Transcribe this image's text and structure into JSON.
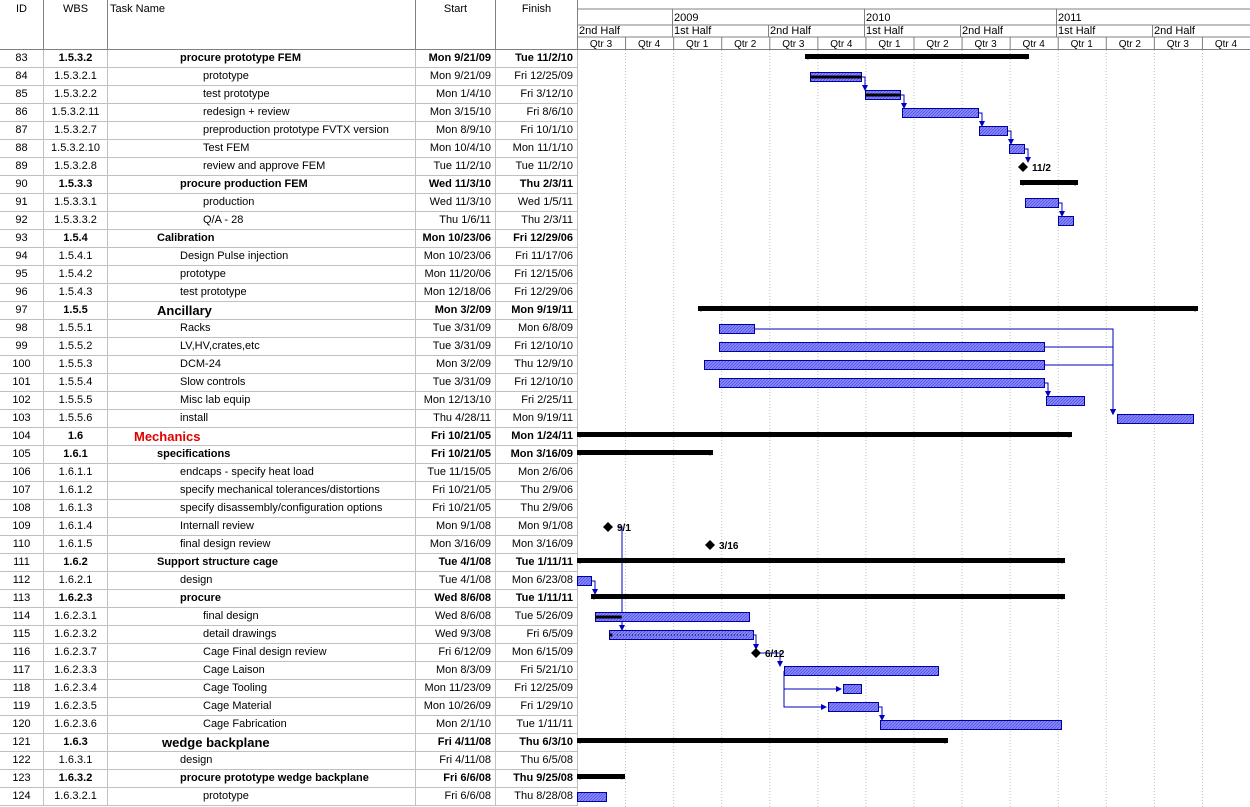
{
  "columns": {
    "id": "ID",
    "wbs": "WBS",
    "name": "Task Name",
    "start": "Start",
    "finish": "Finish"
  },
  "timescale": {
    "years": [
      {
        "label": "",
        "x0": 0,
        "x1": 95
      },
      {
        "label": "2009",
        "x0": 95,
        "x1": 287
      },
      {
        "label": "2010",
        "x0": 287,
        "x1": 479
      },
      {
        "label": "2011",
        "x0": 479,
        "x1": 673
      }
    ],
    "halves": [
      {
        "label": "2nd Half",
        "x0": 0,
        "x1": 95
      },
      {
        "label": "1st Half",
        "x0": 95,
        "x1": 191
      },
      {
        "label": "2nd Half",
        "x0": 191,
        "x1": 287
      },
      {
        "label": "1st Half",
        "x0": 287,
        "x1": 383
      },
      {
        "label": "2nd Half",
        "x0": 383,
        "x1": 479
      },
      {
        "label": "1st Half",
        "x0": 479,
        "x1": 575
      },
      {
        "label": "2nd Half",
        "x0": 575,
        "x1": 673
      }
    ],
    "quarters": [
      "Qtr 3",
      "Qtr 4",
      "Qtr 1",
      "Qtr 2",
      "Qtr 3",
      "Qtr 4",
      "Qtr 1",
      "Qtr 2",
      "Qtr 3",
      "Qtr 4",
      "Qtr 1",
      "Qtr 2",
      "Qtr 3",
      "Qtr 4"
    ]
  },
  "tasks": [
    {
      "id": "83",
      "wbs": "1.5.3.2",
      "name": "procure prototype FEM",
      "start": "Mon 9/21/09",
      "finish": "Tue 11/2/10",
      "style": "bold",
      "indent": 72
    },
    {
      "id": "84",
      "wbs": "1.5.3.2.1",
      "name": "prototype",
      "start": "Mon 9/21/09",
      "finish": "Fri 12/25/09",
      "style": "",
      "indent": 95
    },
    {
      "id": "85",
      "wbs": "1.5.3.2.2",
      "name": "test prototype",
      "start": "Mon 1/4/10",
      "finish": "Fri 3/12/10",
      "style": "",
      "indent": 95
    },
    {
      "id": "86",
      "wbs": "1.5.3.2.11",
      "name": "redesign + review",
      "start": "Mon 3/15/10",
      "finish": "Fri 8/6/10",
      "style": "",
      "indent": 95
    },
    {
      "id": "87",
      "wbs": "1.5.3.2.7",
      "name": "preproduction prototype FVTX version",
      "start": "Mon 8/9/10",
      "finish": "Fri 10/1/10",
      "style": "",
      "indent": 95
    },
    {
      "id": "88",
      "wbs": "1.5.3.2.10",
      "name": "Test FEM",
      "start": "Mon 10/4/10",
      "finish": "Mon 11/1/10",
      "style": "",
      "indent": 95
    },
    {
      "id": "89",
      "wbs": "1.5.3.2.8",
      "name": "review and approve FEM",
      "start": "Tue 11/2/10",
      "finish": "Tue 11/2/10",
      "style": "",
      "indent": 95
    },
    {
      "id": "90",
      "wbs": "1.5.3.3",
      "name": "procure production FEM",
      "start": "Wed 11/3/10",
      "finish": "Thu 2/3/11",
      "style": "bold",
      "indent": 72
    },
    {
      "id": "91",
      "wbs": "1.5.3.3.1",
      "name": "production",
      "start": "Wed 11/3/10",
      "finish": "Wed 1/5/11",
      "style": "",
      "indent": 95
    },
    {
      "id": "92",
      "wbs": "1.5.3.3.2",
      "name": "Q/A - 28",
      "start": "Thu 1/6/11",
      "finish": "Thu 2/3/11",
      "style": "",
      "indent": 95
    },
    {
      "id": "93",
      "wbs": "1.5.4",
      "name": "Calibration",
      "start": "Mon 10/23/06",
      "finish": "Fri 12/29/06",
      "style": "bold",
      "indent": 49
    },
    {
      "id": "94",
      "wbs": "1.5.4.1",
      "name": "Design Pulse injection",
      "start": "Mon 10/23/06",
      "finish": "Fri 11/17/06",
      "style": "",
      "indent": 72
    },
    {
      "id": "95",
      "wbs": "1.5.4.2",
      "name": "prototype",
      "start": "Mon 11/20/06",
      "finish": "Fri 12/15/06",
      "style": "",
      "indent": 72
    },
    {
      "id": "96",
      "wbs": "1.5.4.3",
      "name": "test prototype",
      "start": "Mon 12/18/06",
      "finish": "Fri 12/29/06",
      "style": "",
      "indent": 72
    },
    {
      "id": "97",
      "wbs": "1.5.5",
      "name": "Ancillary",
      "start": "Mon 3/2/09",
      "finish": "Mon 9/19/11",
      "style": "big",
      "indent": 49
    },
    {
      "id": "98",
      "wbs": "1.5.5.1",
      "name": "Racks",
      "start": "Tue 3/31/09",
      "finish": "Mon 6/8/09",
      "style": "",
      "indent": 72
    },
    {
      "id": "99",
      "wbs": "1.5.5.2",
      "name": "LV,HV,crates,etc",
      "start": "Tue 3/31/09",
      "finish": "Fri 12/10/10",
      "style": "",
      "indent": 72
    },
    {
      "id": "100",
      "wbs": "1.5.5.3",
      "name": "DCM-24",
      "start": "Mon 3/2/09",
      "finish": "Thu 12/9/10",
      "style": "",
      "indent": 72
    },
    {
      "id": "101",
      "wbs": "1.5.5.4",
      "name": "Slow controls",
      "start": "Tue 3/31/09",
      "finish": "Fri 12/10/10",
      "style": "",
      "indent": 72
    },
    {
      "id": "102",
      "wbs": "1.5.5.5",
      "name": "Misc lab equip",
      "start": "Mon 12/13/10",
      "finish": "Fri 2/25/11",
      "style": "",
      "indent": 72
    },
    {
      "id": "103",
      "wbs": "1.5.5.6",
      "name": "install",
      "start": "Thu 4/28/11",
      "finish": "Mon 9/19/11",
      "style": "",
      "indent": 72
    },
    {
      "id": "104",
      "wbs": "1.6",
      "name": "Mechanics",
      "start": "Fri 10/21/05",
      "finish": "Mon 1/24/11",
      "style": "big red",
      "indent": 26
    },
    {
      "id": "105",
      "wbs": "1.6.1",
      "name": "specifications",
      "start": "Fri 10/21/05",
      "finish": "Mon 3/16/09",
      "style": "bold",
      "indent": 49
    },
    {
      "id": "106",
      "wbs": "1.6.1.1",
      "name": "endcaps - specify heat load",
      "start": "Tue 11/15/05",
      "finish": "Mon 2/6/06",
      "style": "",
      "indent": 72
    },
    {
      "id": "107",
      "wbs": "1.6.1.2",
      "name": "specify mechanical tolerances/distortions",
      "start": "Fri 10/21/05",
      "finish": "Thu 2/9/06",
      "style": "",
      "indent": 72
    },
    {
      "id": "108",
      "wbs": "1.6.1.3",
      "name": "specify disassembly/configuration options",
      "start": "Fri 10/21/05",
      "finish": "Thu 2/9/06",
      "style": "",
      "indent": 72
    },
    {
      "id": "109",
      "wbs": "1.6.1.4",
      "name": "Internall review",
      "start": "Mon 9/1/08",
      "finish": "Mon 9/1/08",
      "style": "",
      "indent": 72
    },
    {
      "id": "110",
      "wbs": "1.6.1.5",
      "name": "final design review",
      "start": "Mon 3/16/09",
      "finish": "Mon 3/16/09",
      "style": "",
      "indent": 72
    },
    {
      "id": "111",
      "wbs": "1.6.2",
      "name": "Support structure cage",
      "start": "Tue 4/1/08",
      "finish": "Tue 1/11/11",
      "style": "bold",
      "indent": 49
    },
    {
      "id": "112",
      "wbs": "1.6.2.1",
      "name": "design",
      "start": "Tue 4/1/08",
      "finish": "Mon 6/23/08",
      "style": "",
      "indent": 72
    },
    {
      "id": "113",
      "wbs": "1.6.2.3",
      "name": "procure",
      "start": "Wed 8/6/08",
      "finish": "Tue 1/11/11",
      "style": "bold",
      "indent": 72
    },
    {
      "id": "114",
      "wbs": "1.6.2.3.1",
      "name": "final design",
      "start": "Wed 8/6/08",
      "finish": "Tue 5/26/09",
      "style": "",
      "indent": 95
    },
    {
      "id": "115",
      "wbs": "1.6.2.3.2",
      "name": "detail drawings",
      "start": "Wed 9/3/08",
      "finish": "Fri 6/5/09",
      "style": "",
      "indent": 95
    },
    {
      "id": "116",
      "wbs": "1.6.2.3.7",
      "name": "Cage Final design review",
      "start": "Fri 6/12/09",
      "finish": "Mon 6/15/09",
      "style": "",
      "indent": 95
    },
    {
      "id": "117",
      "wbs": "1.6.2.3.3",
      "name": "Cage Laison",
      "start": "Mon 8/3/09",
      "finish": "Fri 5/21/10",
      "style": "",
      "indent": 95
    },
    {
      "id": "118",
      "wbs": "1.6.2.3.4",
      "name": "Cage Tooling",
      "start": "Mon 11/23/09",
      "finish": "Fri 12/25/09",
      "style": "",
      "indent": 95
    },
    {
      "id": "119",
      "wbs": "1.6.2.3.5",
      "name": "Cage Material",
      "start": "Mon 10/26/09",
      "finish": "Fri 1/29/10",
      "style": "",
      "indent": 95
    },
    {
      "id": "120",
      "wbs": "1.6.2.3.6",
      "name": "Cage Fabrication",
      "start": "Mon 2/1/10",
      "finish": "Tue 1/11/11",
      "style": "",
      "indent": 95
    },
    {
      "id": "121",
      "wbs": "1.6.3",
      "name": "wedge backplane",
      "start": "Fri 4/11/08",
      "finish": "Thu 6/3/10",
      "style": "big",
      "indent": 54
    },
    {
      "id": "122",
      "wbs": "1.6.3.1",
      "name": "design",
      "start": "Fri 4/11/08",
      "finish": "Thu 6/5/08",
      "style": "",
      "indent": 72
    },
    {
      "id": "123",
      "wbs": "1.6.3.2",
      "name": "procure prototype wedge backplane",
      "start": "Fri 6/6/08",
      "finish": "Thu 9/25/08",
      "style": "bold",
      "indent": 72
    },
    {
      "id": "124",
      "wbs": "1.6.3.2.1",
      "name": "prototype",
      "start": "Fri 6/6/08",
      "finish": "Thu 8/28/08",
      "style": "",
      "indent": 95
    }
  ],
  "bars": [
    {
      "row": 83,
      "type": "summary",
      "x0": 228,
      "x1": 452
    },
    {
      "row": 84,
      "type": "task",
      "x0": 233,
      "x1": 284,
      "progress": 1
    },
    {
      "row": 85,
      "type": "task",
      "x0": 288,
      "x1": 323,
      "progress": 1
    },
    {
      "row": 86,
      "type": "task",
      "x0": 325,
      "x1": 401
    },
    {
      "row": 87,
      "type": "task",
      "x0": 402,
      "x1": 430
    },
    {
      "row": 88,
      "type": "task",
      "x0": 432,
      "x1": 447
    },
    {
      "row": 89,
      "type": "milestone",
      "x": 446,
      "label": "11/2"
    },
    {
      "row": 90,
      "type": "summary",
      "x0": 443,
      "x1": 501
    },
    {
      "row": 91,
      "type": "task",
      "x0": 448,
      "x1": 481
    },
    {
      "row": 92,
      "type": "task",
      "x0": 481,
      "x1": 496
    },
    {
      "row": 97,
      "type": "summary",
      "x0": 121,
      "x1": 621
    },
    {
      "row": 98,
      "type": "task",
      "x0": 142,
      "x1": 177
    },
    {
      "row": 99,
      "type": "task",
      "x0": 142,
      "x1": 467
    },
    {
      "row": 100,
      "type": "task",
      "x0": 127,
      "x1": 467
    },
    {
      "row": 101,
      "type": "task",
      "x0": 142,
      "x1": 467
    },
    {
      "row": 102,
      "type": "task",
      "x0": 469,
      "x1": 507
    },
    {
      "row": 103,
      "type": "task",
      "x0": 540,
      "x1": 616
    },
    {
      "row": 104,
      "type": "summary",
      "x0": 0,
      "x1": 495
    },
    {
      "row": 105,
      "type": "summary",
      "x0": 0,
      "x1": 136
    },
    {
      "row": 109,
      "type": "milestone",
      "x": 31,
      "label": "9/1"
    },
    {
      "row": 110,
      "type": "milestone",
      "x": 133,
      "label": "3/16"
    },
    {
      "row": 111,
      "type": "summary",
      "x0": 0,
      "x1": 488
    },
    {
      "row": 112,
      "type": "task",
      "x0": 0,
      "x1": 14
    },
    {
      "row": 113,
      "type": "summary",
      "x0": 14,
      "x1": 488
    },
    {
      "row": 114,
      "type": "task",
      "x0": 18,
      "x1": 172,
      "progress": 0.17
    },
    {
      "row": 115,
      "type": "task",
      "x0": 32,
      "x1": 176,
      "progress": 0.02,
      "split": true
    },
    {
      "row": 116,
      "type": "milestone",
      "x": 179,
      "label": "6/12"
    },
    {
      "row": 117,
      "type": "task",
      "x0": 207,
      "x1": 361
    },
    {
      "row": 118,
      "type": "task",
      "x0": 266,
      "x1": 284
    },
    {
      "row": 119,
      "type": "task",
      "x0": 251,
      "x1": 301
    },
    {
      "row": 120,
      "type": "task",
      "x0": 303,
      "x1": 484
    },
    {
      "row": 121,
      "type": "summary",
      "x0": 0,
      "x1": 371
    },
    {
      "row": 123,
      "type": "summary",
      "x0": 0,
      "x1": 48
    },
    {
      "row": 124,
      "type": "task",
      "x0": 0,
      "x1": 29
    }
  ],
  "colors": {
    "task_fill": "#8a8aff",
    "task_edge": "#0000a0",
    "summary": "#000000",
    "link": "#0000c0",
    "grid": "#c0c0c0"
  }
}
